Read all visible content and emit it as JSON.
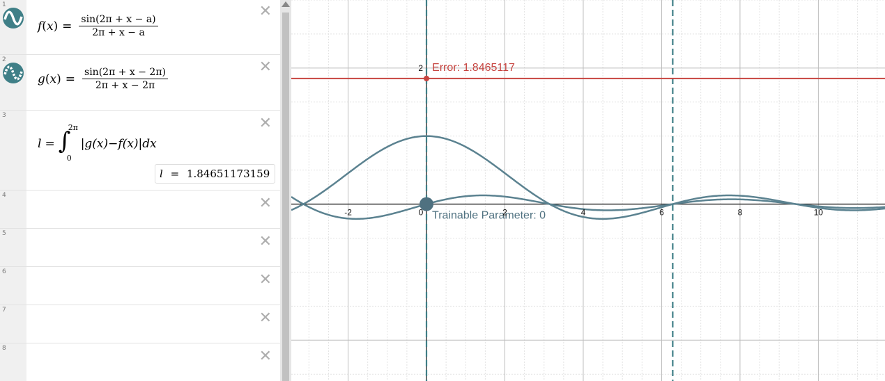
{
  "expressions": [
    {
      "index": "1",
      "fn": "f",
      "var": "x",
      "num": "sin(2π + x − a)",
      "den": "2π + x − a"
    },
    {
      "index": "2",
      "fn": "g",
      "var": "x",
      "num": "sin(2π + x − 2π)",
      "den": "2π + x − 2π"
    },
    {
      "index": "3",
      "lhs": "l",
      "upper": "2π",
      "lower": "0",
      "integrand": "|g(x)−f(x)|dx",
      "eval_var": "l",
      "eval_eq": "=",
      "eval_value": "1.84651173159"
    },
    {
      "index": "4"
    },
    {
      "index": "5"
    },
    {
      "index": "6"
    },
    {
      "index": "7"
    },
    {
      "index": "8"
    }
  ],
  "close_glyph": "✕",
  "icons": {
    "wave": "sine-wave-icon",
    "close": "close-icon"
  },
  "colors": {
    "curve": "#5b8290",
    "error": "#c74440",
    "dashed": "#3f7f87",
    "point": "#4f7180"
  },
  "graph": {
    "x_range": [
      -3.45,
      11.7
    ],
    "y_range": [
      -2.6,
      3.0
    ],
    "x_tick_labels": [
      "-2",
      "0",
      "2",
      "4",
      "6",
      "8",
      "10"
    ],
    "y_tick_labels": [
      "2"
    ],
    "error_label": "Error: 1.8465117",
    "error_value": 1.8465117,
    "param_label": "Trainable Parameter: 0",
    "param_value": 0,
    "dashed_x": [
      0,
      6.2832
    ]
  }
}
